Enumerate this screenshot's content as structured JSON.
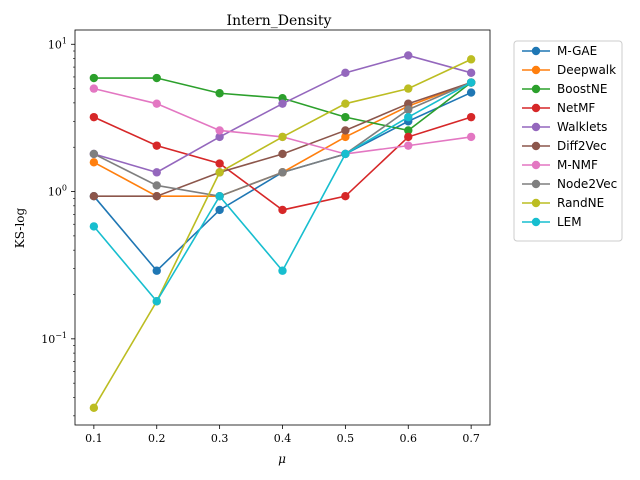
{
  "chart_data": {
    "type": "line",
    "title": "Intern_Density",
    "xlabel": "μ",
    "ylabel": "KS-log",
    "yscale": "log",
    "xlim": [
      0.07,
      0.73
    ],
    "ylim": [
      0.026,
      12.5
    ],
    "x": [
      0.1,
      0.2,
      0.3,
      0.4,
      0.5,
      0.6,
      0.7
    ],
    "x_tick_labels": [
      "0.1",
      "0.2",
      "0.3",
      "0.4",
      "0.5",
      "0.6",
      "0.7"
    ],
    "y_ticks": [
      {
        "value": 0.1,
        "label": "10",
        "exp": "−1"
      },
      {
        "value": 1,
        "label": "10",
        "exp": "0"
      },
      {
        "value": 10,
        "label": "10",
        "exp": "1"
      }
    ],
    "legend_position": "outside-right-top",
    "series": [
      {
        "name": "M-GAE",
        "color": "#1f77b4",
        "values": [
          0.93,
          0.29,
          0.75,
          1.35,
          1.8,
          3.0,
          4.7
        ]
      },
      {
        "name": "Deepwalk",
        "color": "#ff7f0e",
        "values": [
          1.58,
          0.93,
          0.93,
          1.35,
          2.35,
          3.8,
          5.5
        ]
      },
      {
        "name": "BoostNE",
        "color": "#2ca02c",
        "values": [
          5.9,
          5.9,
          4.65,
          4.3,
          3.2,
          2.6,
          5.5
        ]
      },
      {
        "name": "NetMF",
        "color": "#d62728",
        "values": [
          3.2,
          2.05,
          1.55,
          0.75,
          0.93,
          2.35,
          3.2
        ]
      },
      {
        "name": "Walklets",
        "color": "#9467bd",
        "values": [
          1.8,
          1.35,
          2.35,
          3.95,
          6.4,
          8.4,
          6.4
        ]
      },
      {
        "name": "Diff2Vec",
        "color": "#8c564b",
        "values": [
          0.93,
          0.93,
          1.35,
          1.8,
          2.6,
          3.95,
          5.5
        ]
      },
      {
        "name": "M-NMF",
        "color": "#e377c2",
        "values": [
          5.0,
          3.95,
          2.6,
          2.35,
          1.8,
          2.05,
          2.35
        ]
      },
      {
        "name": "Node2Vec",
        "color": "#7f7f7f",
        "values": [
          1.8,
          1.1,
          0.93,
          1.35,
          1.8,
          3.6,
          5.5
        ]
      },
      {
        "name": "RandNE",
        "color": "#bcbd22",
        "values": [
          0.034,
          0.18,
          1.35,
          2.35,
          3.95,
          5.0,
          7.9
        ]
      },
      {
        "name": "LEM",
        "color": "#17becf",
        "values": [
          0.58,
          0.18,
          0.93,
          0.29,
          1.8,
          3.2,
          5.5
        ]
      }
    ]
  }
}
